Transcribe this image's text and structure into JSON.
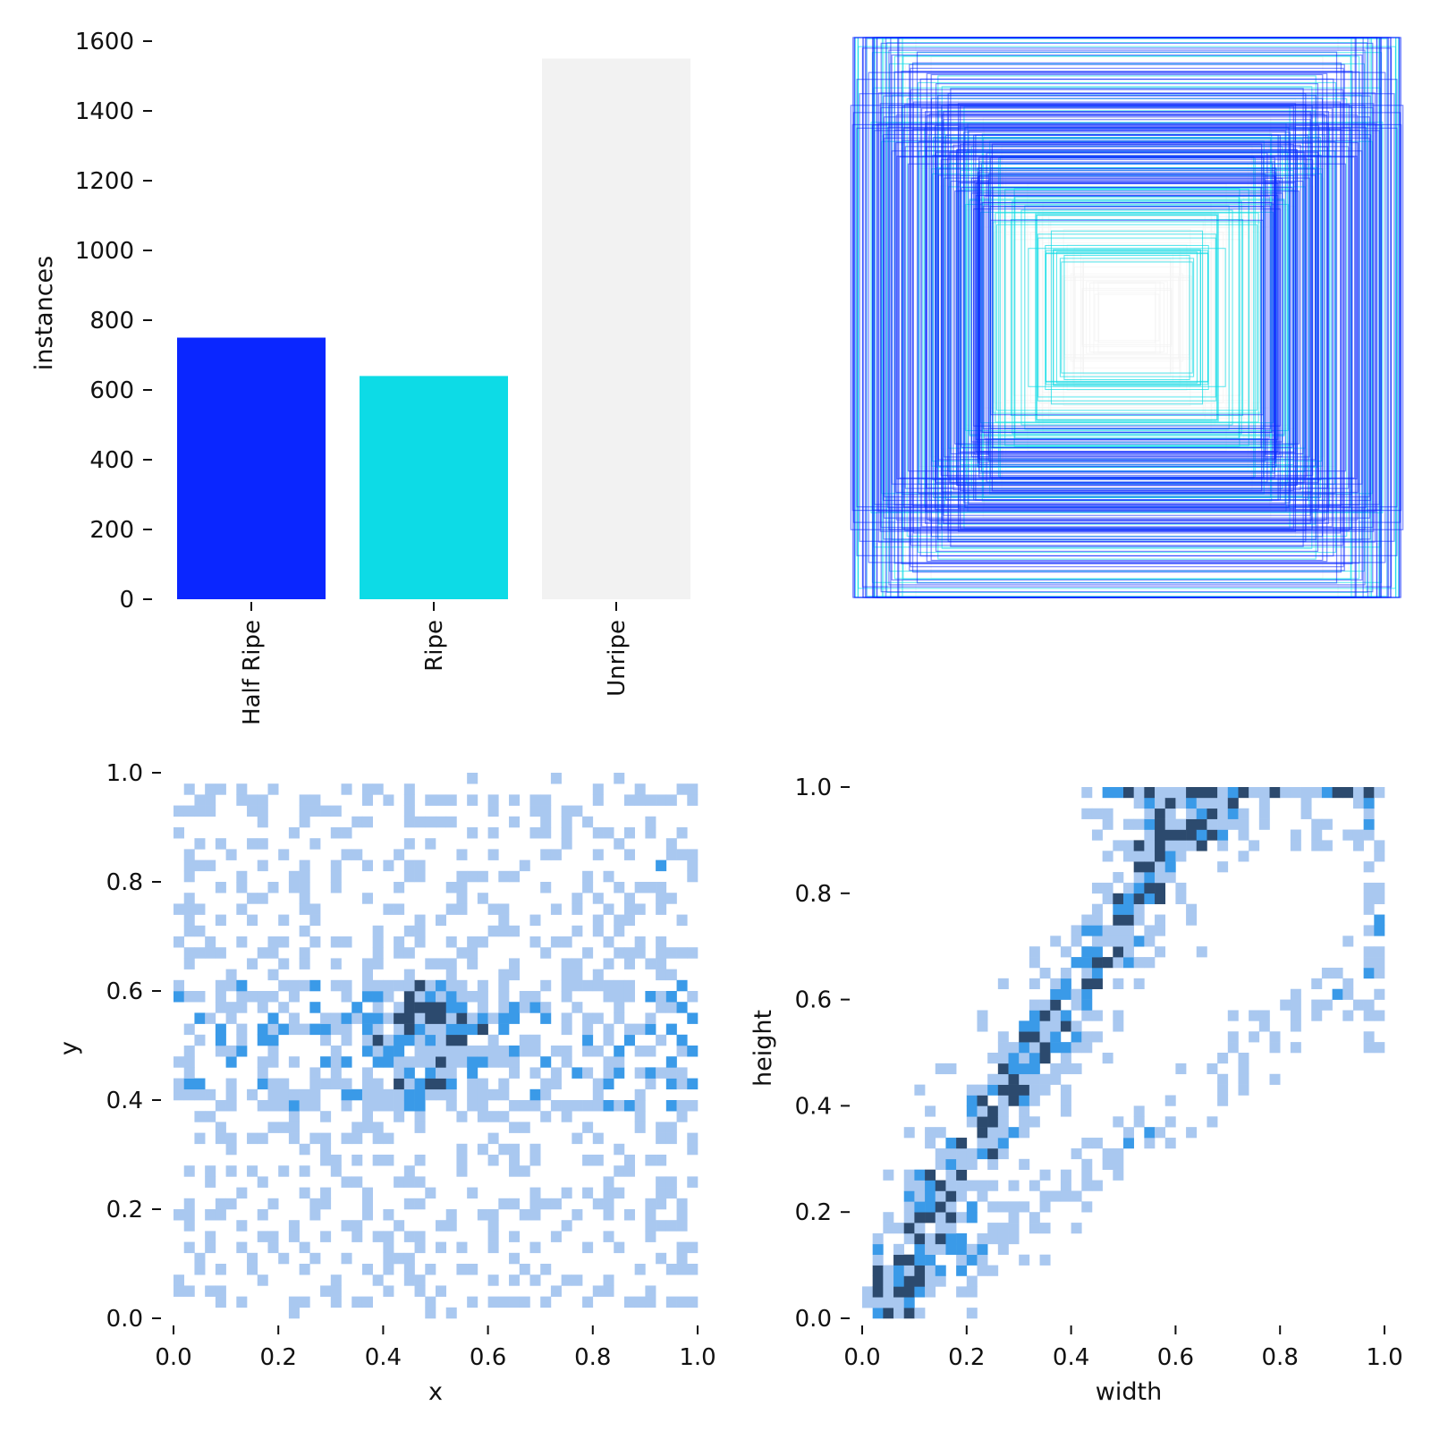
{
  "chart_data": [
    {
      "type": "bar",
      "categories": [
        "Half Ripe",
        "Ripe",
        "Unripe"
      ],
      "values": [
        750,
        640,
        1550
      ],
      "colors": [
        "#0a26ff",
        "#0ddbe6",
        "#f2f2f2"
      ],
      "xlabel": "",
      "ylabel": "instances",
      "ylim": [
        0,
        1600
      ],
      "yticks": [
        "0",
        "200",
        "400",
        "600",
        "800",
        "1000",
        "1200",
        "1400",
        "1600"
      ]
    },
    {
      "type": "overlay-boxes",
      "description_free": true,
      "colors": [
        "#0a26ff",
        "#0ddbe6",
        "#f2f2f2"
      ],
      "xlabel": "",
      "ylabel": ""
    },
    {
      "type": "heatmap",
      "xlabel": "x",
      "ylabel": "y",
      "xlim": [
        0,
        1
      ],
      "ylim": [
        0,
        1
      ],
      "xticks": [
        "0.0",
        "0.2",
        "0.4",
        "0.6",
        "0.8",
        "1.0"
      ],
      "yticks": [
        "0.0",
        "0.2",
        "0.4",
        "0.6",
        "0.8",
        "1.0"
      ],
      "hot_spots": [
        {
          "x": 0.5,
          "y": 0.52,
          "density": "high"
        },
        {
          "x": 0.93,
          "y": 0.85,
          "density": "medium"
        }
      ],
      "color_light": "#a9c8f0",
      "color_mid": "#3a9ae8",
      "color_dark": "#2c4a6e"
    },
    {
      "type": "heatmap",
      "xlabel": "width",
      "ylabel": "height",
      "xlim": [
        0,
        1
      ],
      "ylim": [
        0,
        1
      ],
      "xticks": [
        "0.0",
        "0.2",
        "0.4",
        "0.6",
        "0.8",
        "1.0"
      ],
      "yticks": [
        "0.0",
        "0.2",
        "0.4",
        "0.6",
        "0.8",
        "1.0"
      ],
      "trend": "positive-diagonal",
      "color_light": "#a9c8f0",
      "color_mid": "#3a9ae8",
      "color_dark": "#2c4a6e"
    }
  ]
}
